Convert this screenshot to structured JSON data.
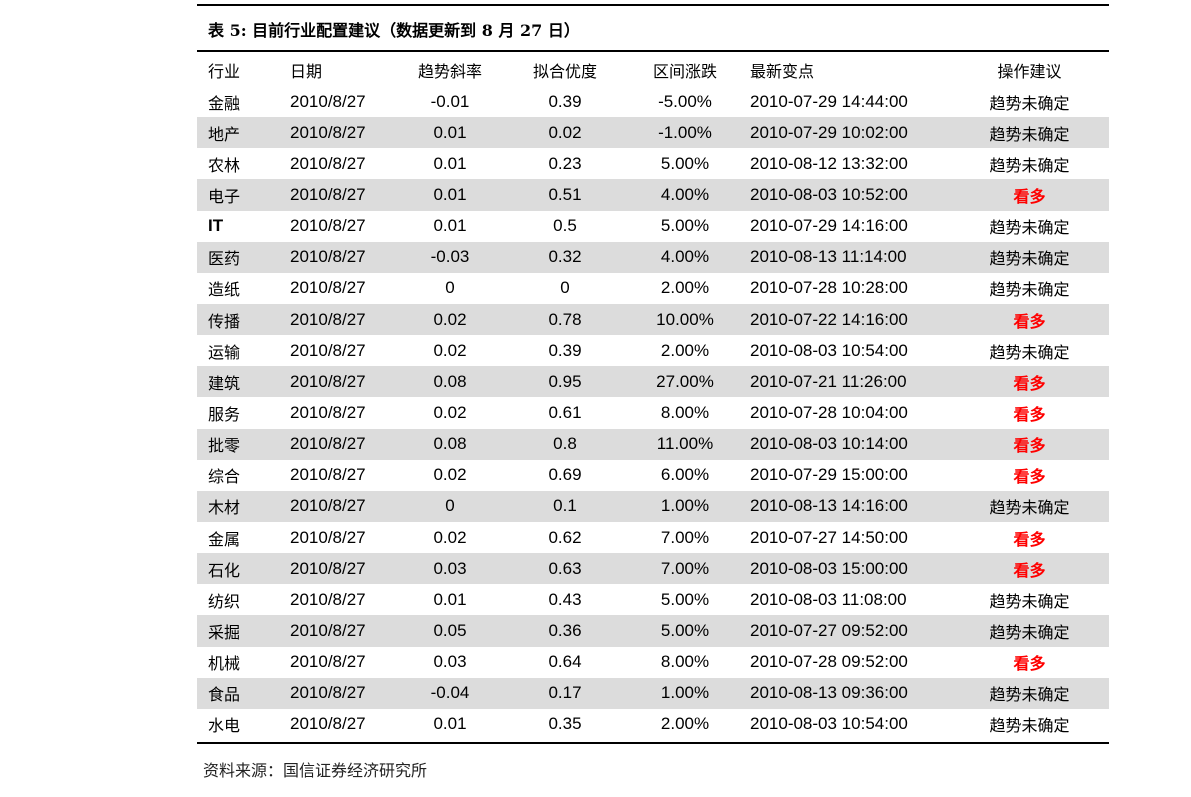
{
  "title": "表 5: 目前行业配置建议（数据更新到 8 月 27 日）",
  "colors": {
    "highlight": "#ff0000",
    "alt_row": "#dcdcdc"
  },
  "headers": [
    "行业",
    "日期",
    "趋势斜率",
    "拟合优度",
    "区间涨跌",
    "最新变点",
    "操作建议"
  ],
  "rows": [
    [
      "金融",
      "2010/8/27",
      "-0.01",
      "0.39",
      "-5.00%",
      "2010-07-29 14:44:00",
      "趋势未确定"
    ],
    [
      "地产",
      "2010/8/27",
      "0.01",
      "0.02",
      "-1.00%",
      "2010-07-29 10:02:00",
      "趋势未确定"
    ],
    [
      "农林",
      "2010/8/27",
      "0.01",
      "0.23",
      "5.00%",
      "2010-08-12 13:32:00",
      "趋势未确定"
    ],
    [
      "电子",
      "2010/8/27",
      "0.01",
      "0.51",
      "4.00%",
      "2010-08-03 10:52:00",
      "看多"
    ],
    [
      "IT",
      "2010/8/27",
      "0.01",
      "0.5",
      "5.00%",
      "2010-07-29 14:16:00",
      "趋势未确定"
    ],
    [
      "医药",
      "2010/8/27",
      "-0.03",
      "0.32",
      "4.00%",
      "2010-08-13 11:14:00",
      "趋势未确定"
    ],
    [
      "造纸",
      "2010/8/27",
      "0",
      "0",
      "2.00%",
      "2010-07-28 10:28:00",
      "趋势未确定"
    ],
    [
      "传播",
      "2010/8/27",
      "0.02",
      "0.78",
      "10.00%",
      "2010-07-22 14:16:00",
      "看多"
    ],
    [
      "运输",
      "2010/8/27",
      "0.02",
      "0.39",
      "2.00%",
      "2010-08-03 10:54:00",
      "趋势未确定"
    ],
    [
      "建筑",
      "2010/8/27",
      "0.08",
      "0.95",
      "27.00%",
      "2010-07-21 11:26:00",
      "看多"
    ],
    [
      "服务",
      "2010/8/27",
      "0.02",
      "0.61",
      "8.00%",
      "2010-07-28 10:04:00",
      "看多"
    ],
    [
      "批零",
      "2010/8/27",
      "0.08",
      "0.8",
      "11.00%",
      "2010-08-03 10:14:00",
      "看多"
    ],
    [
      "综合",
      "2010/8/27",
      "0.02",
      "0.69",
      "6.00%",
      "2010-07-29 15:00:00",
      "看多"
    ],
    [
      "木材",
      "2010/8/27",
      "0",
      "0.1",
      "1.00%",
      "2010-08-13 14:16:00",
      "趋势未确定"
    ],
    [
      "金属",
      "2010/8/27",
      "0.02",
      "0.62",
      "7.00%",
      "2010-07-27 14:50:00",
      "看多"
    ],
    [
      "石化",
      "2010/8/27",
      "0.03",
      "0.63",
      "7.00%",
      "2010-08-03 15:00:00",
      "看多"
    ],
    [
      "纺织",
      "2010/8/27",
      "0.01",
      "0.43",
      "5.00%",
      "2010-08-03 11:08:00",
      "趋势未确定"
    ],
    [
      "采掘",
      "2010/8/27",
      "0.05",
      "0.36",
      "5.00%",
      "2010-07-27 09:52:00",
      "趋势未确定"
    ],
    [
      "机械",
      "2010/8/27",
      "0.03",
      "0.64",
      "8.00%",
      "2010-07-28 09:52:00",
      "看多"
    ],
    [
      "食品",
      "2010/8/27",
      "-0.04",
      "0.17",
      "1.00%",
      "2010-08-13 09:36:00",
      "趋势未确定"
    ],
    [
      "水电",
      "2010/8/27",
      "0.01",
      "0.35",
      "2.00%",
      "2010-08-03 10:54:00",
      "趋势未确定"
    ]
  ],
  "source": "资料来源：国信证券经济研究所"
}
